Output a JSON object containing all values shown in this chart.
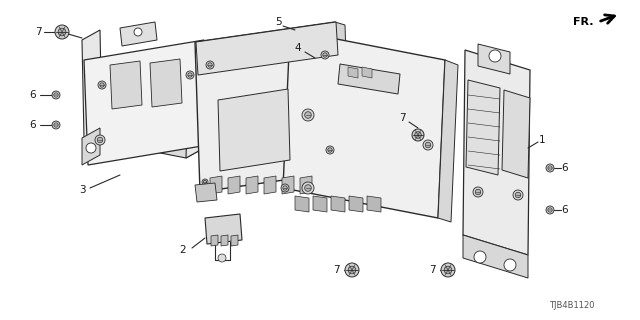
{
  "bg_color": "#ffffff",
  "fig_width": 6.4,
  "fig_height": 3.2,
  "dpi": 100,
  "diagram_code": "TJB4B1120",
  "line_color": "#2a2a2a",
  "label_color": "#1a1a1a",
  "face_color": "#f0f0f0",
  "face_color2": "#e0e0e0",
  "face_color3": "#d0d0d0"
}
